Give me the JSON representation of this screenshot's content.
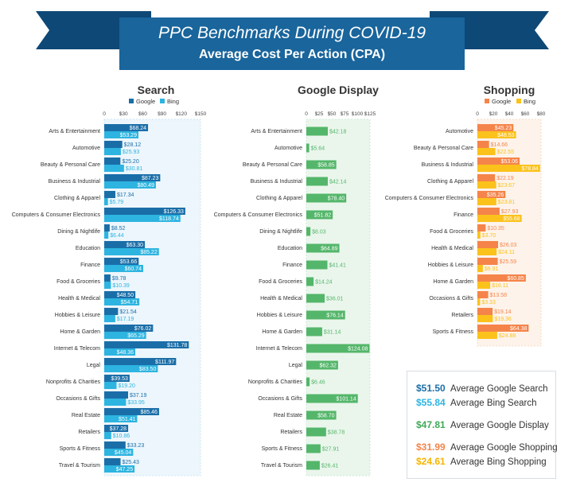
{
  "banner": {
    "line1": "PPC Benchmarks During COVID-19",
    "line2": "Average Cost Per Action (CPA)"
  },
  "colors": {
    "banner": "#19659c",
    "google": "#1a6ea8",
    "bing": "#2db4e0",
    "display": "#54b66a",
    "google_shopping": "#f5844a",
    "bing_shopping": "#fbc21c",
    "search_panel": "#ecf6fc",
    "display_panel": "#eaf6ec",
    "shopping_panel": "#fdf3ea"
  },
  "chart_data": [
    {
      "type": "bar",
      "orientation": "horizontal",
      "title": "Search",
      "legend": [
        "Google",
        "Bing"
      ],
      "xlim": [
        0,
        150
      ],
      "ticks": [
        "0",
        "$30",
        "$60",
        "$90",
        "$120",
        "$150"
      ],
      "tick_values": [
        0,
        30,
        60,
        90,
        120,
        150
      ],
      "categories": [
        "Arts & Entertainment",
        "Automotive",
        "Beauty & Personal Care",
        "Business & Industrial",
        "Clothing & Apparel",
        "Computers & Consumer Electronics",
        "Dining & Nightlife",
        "Education",
        "Finance",
        "Food & Groceries",
        "Health & Medical",
        "Hobbies & Leisure",
        "Home & Garden",
        "Internet & Telecom",
        "Legal",
        "Nonprofits & Charities",
        "Occasions & Gifts",
        "Real Estate",
        "Retailers",
        "Sports & Fitness",
        "Travel & Tourism"
      ],
      "series": [
        {
          "name": "Google",
          "values": [
            68.24,
            28.12,
            25.2,
            87.23,
            17.34,
            126.33,
            8.52,
            63.3,
            53.66,
            9.78,
            48.5,
            21.54,
            76.02,
            131.78,
            111.97,
            39.53,
            37.19,
            85.46,
            37.28,
            33.23,
            25.43
          ],
          "labels": [
            "$68.24",
            "$28.12",
            "$25.20",
            "$87.23",
            "$17.34",
            "$126.33",
            "$8.52",
            "$63.30",
            "$53.66",
            "$9.78",
            "$48.50",
            "$21.54",
            "$76.02",
            "$131.78",
            "$111.97",
            "$39.53",
            "$37.19",
            "$85.46",
            "$37.28",
            "$33.23",
            "$25.43"
          ]
        },
        {
          "name": "Bing",
          "values": [
            53.29,
            25.93,
            30.81,
            80.49,
            5.79,
            118.74,
            6.44,
            85.22,
            60.74,
            10.39,
            54.71,
            17.19,
            65.29,
            48.36,
            83.5,
            19.2,
            33.95,
            51.41,
            10.86,
            45.04,
            47.25
          ],
          "labels": [
            "$53.29",
            "$25.93",
            "$30.81",
            "$80.49",
            "$5.79",
            "$118.74",
            "$6.44",
            "$85.22",
            "$60.74",
            "$10.39",
            "$54.71",
            "$17.19",
            "$65.29",
            "$48.36",
            "$83.50",
            "$19.20",
            "$33.95",
            "$51.41",
            "$10.86",
            "$45.04",
            "$47.25"
          ]
        }
      ]
    },
    {
      "type": "bar",
      "orientation": "horizontal",
      "title": "Google Display",
      "xlim": [
        0,
        125
      ],
      "ticks": [
        "0",
        "$25",
        "$50",
        "$75",
        "$100",
        "$125"
      ],
      "tick_values": [
        0,
        25,
        50,
        75,
        100,
        125
      ],
      "categories": [
        "Arts & Entertainment",
        "Automotive",
        "Beauty & Personal Care",
        "Business & Industrial",
        "Clothing & Apparel",
        "Computers & Consumer Electronics",
        "Dining & Nightlife",
        "Education",
        "Finance",
        "Food & Groceries",
        "Health & Medical",
        "Hobbies & Leisure",
        "Home & Garden",
        "Internet & Telecom",
        "Legal",
        "Nonprofits & Charities",
        "Occasions & Gifts",
        "Real Estate",
        "Retailers",
        "Sports & Fitness",
        "Travel & Tourism"
      ],
      "series": [
        {
          "name": "Google Display",
          "values": [
            42.18,
            5.64,
            58.85,
            42.14,
            78.4,
            51.82,
            8.03,
            64.89,
            41.41,
            14.24,
            36.01,
            76.14,
            31.14,
            124.08,
            62.32,
            6.46,
            101.14,
            58.7,
            38.78,
            27.91,
            26.41
          ],
          "labels": [
            "$42.18",
            "$5.64",
            "$58.85",
            "$42.14",
            "$78.40",
            "$51.82",
            "$8.03",
            "$64.89",
            "$41.41",
            "$14.24",
            "$36.01",
            "$76.14",
            "$31.14",
            "$124.08",
            "$62.32",
            "$6.46",
            "$101.14",
            "$58.70",
            "$38.78",
            "$27.91",
            "$26.41"
          ]
        }
      ]
    },
    {
      "type": "bar",
      "orientation": "horizontal",
      "title": "Shopping",
      "legend": [
        "Google",
        "Bing"
      ],
      "xlim": [
        0,
        80
      ],
      "ticks": [
        "0",
        "$20",
        "$40",
        "$60",
        "$80"
      ],
      "tick_values": [
        0,
        20,
        40,
        60,
        80
      ],
      "categories": [
        "Automotive",
        "Beauty & Personal Care",
        "Business & Industrial",
        "Clothing & Apparel",
        "Computers & Consumer Electronics",
        "Finance",
        "Food & Groceries",
        "Health & Medical",
        "Hobbies & Leisure",
        "Home & Garden",
        "Occasions & Gifts",
        "Retailers",
        "Sports & Fitness"
      ],
      "series": [
        {
          "name": "Google",
          "values": [
            45.23,
            14.66,
            53.06,
            22.19,
            35.26,
            27.93,
            10.35,
            26.03,
            25.59,
            60.85,
            13.58,
            19.14,
            64.38
          ],
          "labels": [
            "$45.23",
            "$14.66",
            "$53.06",
            "$22.19",
            "$35.26",
            "$27.93",
            "$10.35",
            "$26.03",
            "$25.59",
            "$60.85",
            "$13.58",
            "$19.14",
            "$64.38"
          ]
        },
        {
          "name": "Bing",
          "values": [
            48.53,
            22.55,
            78.84,
            23.67,
            23.81,
            55.68,
            3.7,
            24.11,
            6.91,
            16.11,
            3.33,
            19.36,
            24.88
          ],
          "labels": [
            "$48.53",
            "$22.55",
            "$78.84",
            "$23.67",
            "$23.81",
            "$55.68",
            "$3.70",
            "$24.11",
            "$6.91",
            "$16.11",
            "$3.33",
            "$19.36",
            "$24.88"
          ]
        }
      ]
    }
  ],
  "summary": [
    {
      "value": "$51.50",
      "label": "Average Google Search",
      "color": "#1a6ea8"
    },
    {
      "value": "$55.84",
      "label": "Average Bing Search",
      "color": "#2db4e0"
    },
    {
      "value": "$47.81",
      "label": "Average Google Display",
      "color": "#3fa957"
    },
    {
      "value": "$31.99",
      "label": "Average Google Shopping",
      "color": "#f5844a"
    },
    {
      "value": "$24.61",
      "label": "Average Bing Shopping",
      "color": "#f5b400"
    }
  ]
}
